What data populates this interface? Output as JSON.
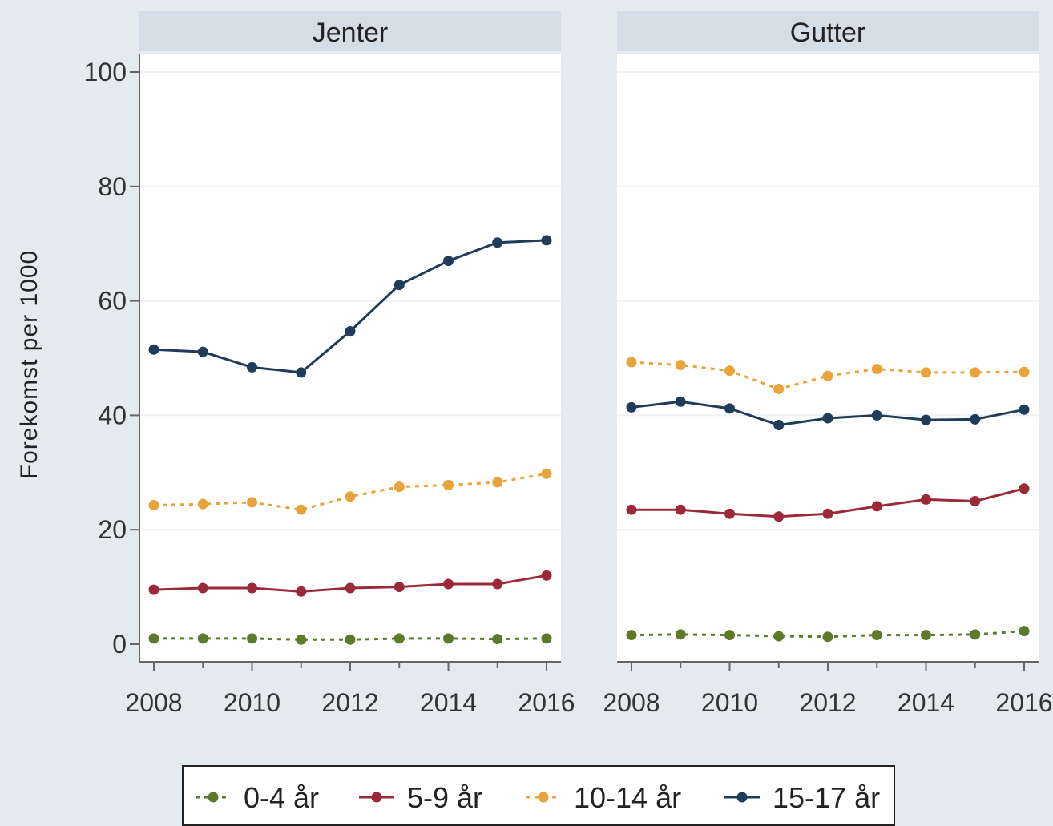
{
  "chart_data": {
    "type": "line",
    "ylabel": "Forekomst per 1000",
    "ylim": [
      0,
      100
    ],
    "yticks": [
      0,
      20,
      40,
      60,
      80,
      100
    ],
    "xlim": [
      2008,
      2016
    ],
    "xticks": [
      2008,
      2010,
      2012,
      2014,
      2016
    ],
    "x": [
      2008,
      2009,
      2010,
      2011,
      2012,
      2013,
      2014,
      2015,
      2016
    ],
    "legend_position": "bottom",
    "grid": "horizontal",
    "panels": [
      {
        "title": "Jenter",
        "series": [
          {
            "name": "0-4 år",
            "values": [
              1,
              1,
              1,
              0.8,
              0.8,
              1,
              1,
              0.9,
              1
            ]
          },
          {
            "name": "5-9 år",
            "values": [
              9.5,
              9.8,
              9.8,
              9.2,
              9.8,
              10,
              10.5,
              10.5,
              12
            ]
          },
          {
            "name": "10-14 år",
            "values": [
              24.3,
              24.5,
              24.8,
              23.5,
              25.8,
              27.5,
              27.8,
              28.3,
              29.8
            ]
          },
          {
            "name": "15-17 år",
            "values": [
              51.5,
              51.1,
              48.4,
              47.5,
              54.7,
              62.8,
              67.0,
              70.2,
              70.6
            ]
          }
        ]
      },
      {
        "title": "Gutter",
        "series": [
          {
            "name": "0-4 år",
            "values": [
              1.6,
              1.7,
              1.6,
              1.4,
              1.3,
              1.6,
              1.6,
              1.7,
              2.3
            ]
          },
          {
            "name": "5-9 år",
            "values": [
              23.5,
              23.5,
              22.8,
              22.3,
              22.8,
              24.1,
              25.3,
              25.0,
              27.2
            ]
          },
          {
            "name": "10-14 år",
            "values": [
              49.3,
              48.8,
              47.8,
              44.6,
              46.9,
              48.1,
              47.5,
              47.5,
              47.6
            ]
          },
          {
            "name": "15-17 år",
            "values": [
              41.4,
              42.4,
              41.2,
              38.3,
              39.5,
              40.0,
              39.2,
              39.3,
              41.0
            ]
          }
        ]
      }
    ],
    "series_styles": [
      {
        "color": "#5d7a2a",
        "dashed": true
      },
      {
        "color": "#9a2a39",
        "dashed": false
      },
      {
        "color": "#e8a33a",
        "dashed": true
      },
      {
        "color": "#1f3c5a",
        "dashed": false
      }
    ]
  }
}
